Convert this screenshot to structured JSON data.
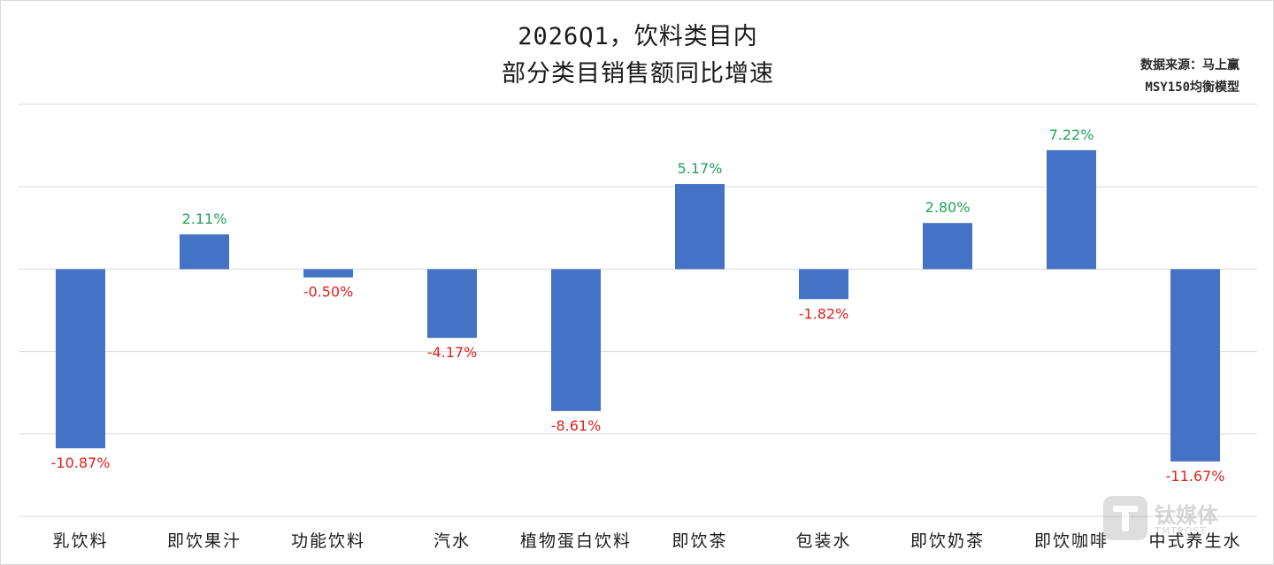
{
  "title_line1": "2026Q1，饮料类目内",
  "title_line2": "部分类目销售额同比增速",
  "source_line1": "数据来源：马上赢",
  "source_line2": "MSY150均衡模型",
  "watermark_text": "钛媒体",
  "watermark_sub": "TMTPOST",
  "colors": {
    "bar": "#4472C4",
    "positive_label": "#22A35A",
    "negative_label": "#E02020",
    "gridline": "#d9d9d9",
    "axis_text": "#1a1a1a"
  },
  "chart_data": {
    "type": "bar",
    "categories": [
      "乳饮料",
      "即饮果汁",
      "功能饮料",
      "汽水",
      "植物蛋白饮料",
      "即饮茶",
      "包装水",
      "即饮奶茶",
      "即饮咖啡",
      "中式养生水"
    ],
    "values": [
      -10.87,
      2.11,
      -0.5,
      -4.17,
      -8.61,
      5.17,
      -1.82,
      2.8,
      7.22,
      -11.67
    ],
    "data_labels": [
      "-10.87%",
      "2.11%",
      "-0.50%",
      "-4.17%",
      "-8.61%",
      "5.17%",
      "-1.82%",
      "2.80%",
      "7.22%",
      "-11.67%"
    ],
    "ylim": [
      -15,
      10
    ],
    "gridline_values": [
      10,
      5,
      0,
      -5,
      -10,
      -15
    ],
    "show_y_tick_labels": false,
    "grid": true,
    "legend": "none"
  }
}
